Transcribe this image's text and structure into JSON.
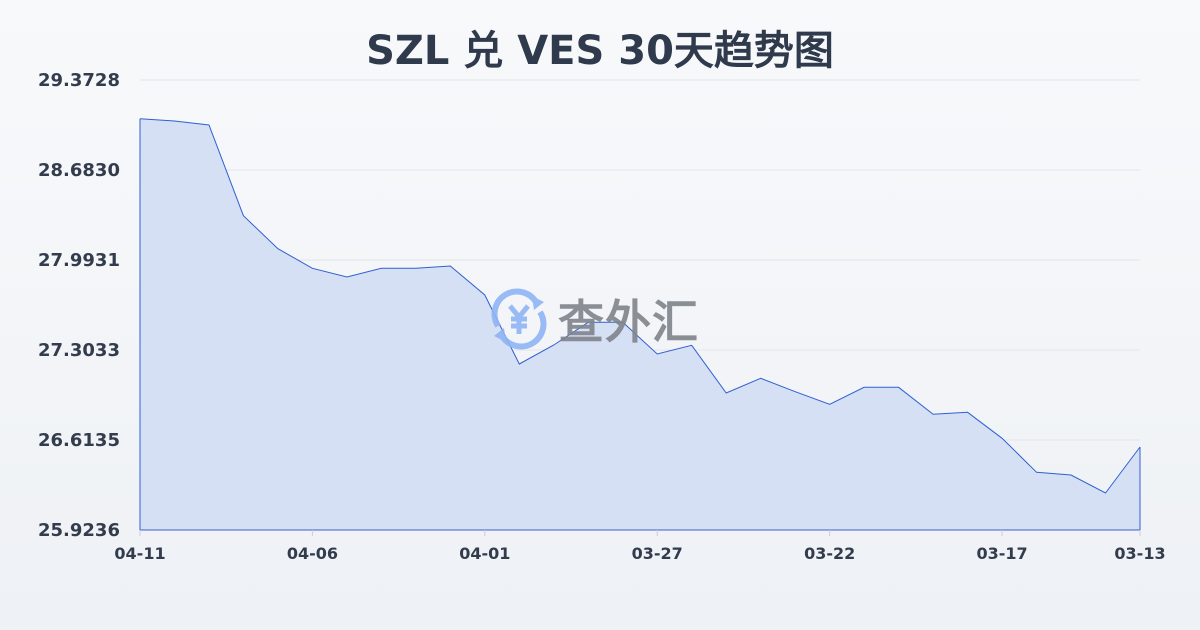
{
  "chart_data": {
    "type": "area",
    "title": "SZL 兑 VES 30天趋势图",
    "xlabel": "",
    "ylabel": "",
    "x": [
      "04-11",
      "04-10",
      "04-09",
      "04-08",
      "04-07",
      "04-06",
      "04-05",
      "04-04",
      "04-03",
      "04-02",
      "04-01",
      "03-31",
      "03-30",
      "03-29",
      "03-28",
      "03-27",
      "03-26",
      "03-25",
      "03-24",
      "03-23",
      "03-22",
      "03-21",
      "03-20",
      "03-19",
      "03-18",
      "03-17",
      "03-16",
      "03-15",
      "03-14",
      "03-13"
    ],
    "values": [
      29.0762,
      29.0585,
      29.0279,
      28.3327,
      28.0797,
      27.9295,
      27.8628,
      27.9295,
      27.9295,
      27.9471,
      27.7248,
      27.196,
      27.3416,
      27.5156,
      27.5156,
      27.2726,
      27.3393,
      26.9737,
      27.0864,
      26.9837,
      26.8871,
      27.0174,
      27.0174,
      26.8105,
      26.8258,
      26.6265,
      26.3658,
      26.3452,
      26.2072,
      26.5598
    ],
    "x_tick_labels": [
      "04-11",
      "04-06",
      "04-01",
      "03-27",
      "03-22",
      "03-17",
      "03-13"
    ],
    "y_tick_labels": [
      "29.3728",
      "28.6830",
      "27.9931",
      "27.3033",
      "26.6135",
      "25.9236"
    ],
    "ylim": [
      25.9236,
      29.3728
    ],
    "grid": true,
    "line_color": "#3060d0",
    "fill_color": "#d6e0f5"
  },
  "watermark": {
    "text": "查外汇",
    "icon": "yen-exchange-icon"
  }
}
